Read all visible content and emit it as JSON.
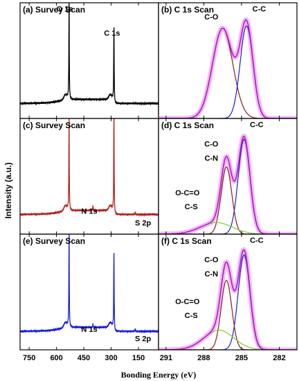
{
  "chart_data": {
    "type": "line",
    "xlabel": "Bonding Energy (eV)",
    "ylabel": "Intensity (a.u.)",
    "survey_xlim": [
      800,
      40
    ],
    "survey_xticks": [
      750,
      600,
      450,
      300,
      150
    ],
    "c1s_xlim": [
      291.6,
      280.6
    ],
    "c1s_xticks": [
      291,
      288,
      285,
      282
    ],
    "panels": [
      {
        "label": "(a) Survey Scan",
        "kind": "survey",
        "color": "#000000",
        "row": 0,
        "baseline": 0.13,
        "peaks": [
          {
            "be": 531,
            "height": 0.92,
            "label": "O 1s"
          },
          {
            "be": 284.6,
            "height": 0.7,
            "label": "C 1s"
          }
        ],
        "annotations": [
          {
            "text": "O 1s",
            "be": 555,
            "y": 0.95
          },
          {
            "text": "C 1s",
            "be": 295,
            "y": 0.74
          }
        ]
      },
      {
        "label": "(b) C 1s Scan",
        "kind": "c1s",
        "row": 0,
        "components": [
          {
            "name": "C-O",
            "center": 286.5,
            "fwhm": 1.9,
            "height": 0.78,
            "color": "#8b1a1a"
          },
          {
            "name": "C-C",
            "center": 284.6,
            "fwhm": 1.2,
            "height": 0.8,
            "color": "#1c1cd6"
          }
        ],
        "envelope_color": "#b21cc4",
        "annotations": [
          {
            "text": "C-O",
            "be": 287.4,
            "y": 0.88
          },
          {
            "text": "C-C",
            "be": 283.6,
            "y": 0.95
          }
        ]
      },
      {
        "label": "(c) Survey Scan",
        "kind": "survey",
        "color": "#b22222",
        "row": 1,
        "baseline": 0.17,
        "peaks": [
          {
            "be": 531,
            "height": 0.85,
            "label": "O 1s"
          },
          {
            "be": 284.6,
            "height": 0.95,
            "label": "C 1s"
          },
          {
            "be": 400,
            "height": 0.04,
            "label": "N 1s"
          },
          {
            "be": 168,
            "height": 0.02,
            "label": "S 2p"
          }
        ],
        "annotations": [
          {
            "text": "N 1s",
            "be": 420,
            "y": 0.2
          },
          {
            "text": "S 2p",
            "be": 125,
            "y": 0.1
          }
        ]
      },
      {
        "label": "(d) C 1s Scan",
        "kind": "c1s",
        "row": 1,
        "components": [
          {
            "name": "C-C",
            "center": 284.8,
            "fwhm": 1.1,
            "height": 0.82,
            "color": "#1c1cd6"
          },
          {
            "name": "C-O",
            "center": 286.2,
            "fwhm": 1.0,
            "height": 0.58,
            "color": "#8b1a1a"
          },
          {
            "name": "O-C=O",
            "center": 287.0,
            "fwhm": 3.0,
            "height": 0.1,
            "color": "#7cc93a"
          }
        ],
        "envelope_color": "#b21cc4",
        "annotations": [
          {
            "text": "C-C",
            "be": 283.8,
            "y": 0.95
          },
          {
            "text": "C-O",
            "be": 287.4,
            "y": 0.78
          },
          {
            "text": "C-N",
            "be": 287.4,
            "y": 0.66
          },
          {
            "text": "O-C=O",
            "be": 289.3,
            "y": 0.36
          },
          {
            "text": "C-S",
            "be": 289.0,
            "y": 0.24
          }
        ]
      },
      {
        "label": "(e) Survey Scan",
        "kind": "survey",
        "color": "#1c1cd6",
        "row": 2,
        "baseline": 0.16,
        "peaks": [
          {
            "be": 531,
            "height": 0.9,
            "label": "O 1s"
          },
          {
            "be": 284.6,
            "height": 0.72,
            "label": "C 1s"
          },
          {
            "be": 400,
            "height": 0.03,
            "label": "N 1s"
          },
          {
            "be": 168,
            "height": 0.02,
            "label": "S 2p"
          }
        ],
        "annotations": [
          {
            "text": "N 1s",
            "be": 420,
            "y": 0.18
          },
          {
            "text": "S 2p",
            "be": 125,
            "y": 0.1
          }
        ]
      },
      {
        "label": "(f) C 1s Scan",
        "kind": "c1s",
        "row": 2,
        "components": [
          {
            "name": "C-C",
            "center": 284.8,
            "fwhm": 1.1,
            "height": 0.82,
            "color": "#1c1cd6"
          },
          {
            "name": "C-O",
            "center": 286.2,
            "fwhm": 1.0,
            "height": 0.6,
            "color": "#8b1a1a"
          },
          {
            "name": "O-C=O",
            "center": 286.8,
            "fwhm": 2.8,
            "height": 0.17,
            "color": "#7cc93a"
          }
        ],
        "envelope_color": "#b21cc4",
        "annotations": [
          {
            "text": "C-C",
            "be": 283.8,
            "y": 0.95
          },
          {
            "text": "C-O",
            "be": 287.4,
            "y": 0.78
          },
          {
            "text": "C-N",
            "be": 287.4,
            "y": 0.66
          },
          {
            "text": "O-C=O",
            "be": 289.3,
            "y": 0.42
          },
          {
            "text": "C-S",
            "be": 289.0,
            "y": 0.3
          }
        ]
      }
    ]
  }
}
